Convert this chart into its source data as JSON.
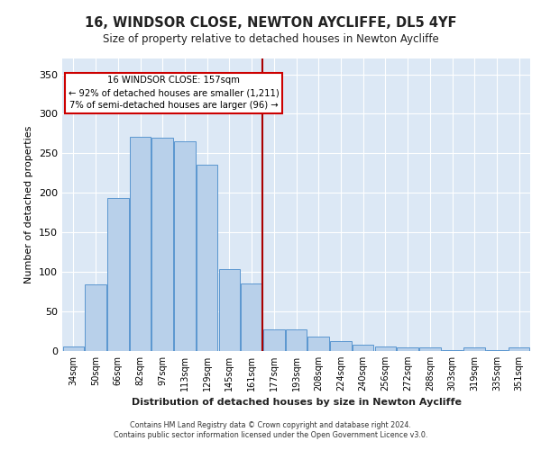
{
  "title": "16, WINDSOR CLOSE, NEWTON AYCLIFFE, DL5 4YF",
  "subtitle": "Size of property relative to detached houses in Newton Aycliffe",
  "xlabel": "Distribution of detached houses by size in Newton Aycliffe",
  "ylabel": "Number of detached properties",
  "bin_labels": [
    "34sqm",
    "50sqm",
    "66sqm",
    "82sqm",
    "97sqm",
    "113sqm",
    "129sqm",
    "145sqm",
    "161sqm",
    "177sqm",
    "193sqm",
    "208sqm",
    "224sqm",
    "240sqm",
    "256sqm",
    "272sqm",
    "288sqm",
    "303sqm",
    "319sqm",
    "335sqm",
    "351sqm"
  ],
  "bar_heights": [
    6,
    84,
    193,
    271,
    270,
    265,
    236,
    104,
    85,
    27,
    27,
    18,
    13,
    8,
    6,
    4,
    4,
    1,
    4,
    1,
    4
  ],
  "bar_color": "#b8d0ea",
  "bar_edge_color": "#5a96d0",
  "red_line_x": 8.5,
  "red_line_color": "#aa0000",
  "annotation_text": "16 WINDSOR CLOSE: 157sqm\n← 92% of detached houses are smaller (1,211)\n7% of semi-detached houses are larger (96) →",
  "annotation_box_edgecolor": "#cc0000",
  "ylim": [
    0,
    370
  ],
  "yticks": [
    0,
    50,
    100,
    150,
    200,
    250,
    300,
    350
  ],
  "background_color": "#dce8f5",
  "grid_color": "#ffffff",
  "footer_line1": "Contains HM Land Registry data © Crown copyright and database right 2024.",
  "footer_line2": "Contains public sector information licensed under the Open Government Licence v3.0."
}
